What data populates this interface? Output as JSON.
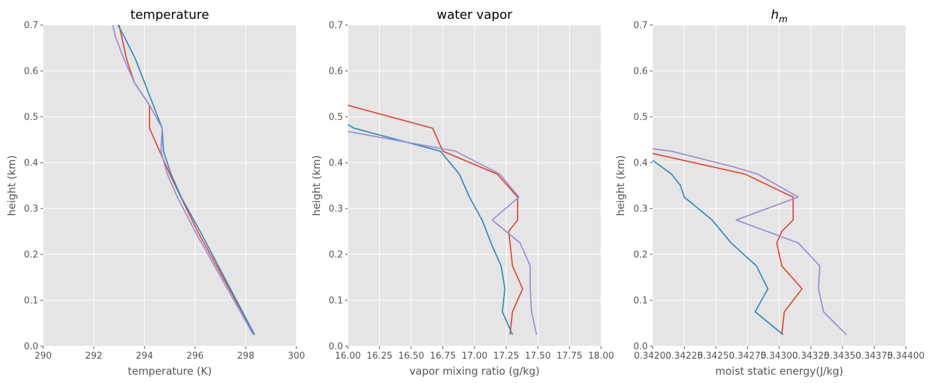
{
  "chart_data": [
    {
      "type": "line",
      "title": "temperature",
      "xlabel": "temperature (K)",
      "ylabel": "height (km)",
      "xlim": [
        290,
        300
      ],
      "ylim": [
        0.0,
        0.7
      ],
      "xticks": [
        290,
        292,
        294,
        296,
        298,
        300
      ],
      "xtick_labels": [
        "290",
        "292",
        "294",
        "296",
        "298",
        "300"
      ],
      "yticks": [
        0.0,
        0.1,
        0.2,
        0.3,
        0.4,
        0.5,
        0.6,
        0.7
      ],
      "ytick_labels": [
        "0.0",
        "0.1",
        "0.2",
        "0.3",
        "0.4",
        "0.5",
        "0.6",
        "0.7"
      ],
      "grid": true,
      "series": [
        {
          "color": "#e24a33",
          "x": [
            298.35,
            296.1,
            295.0,
            294.6,
            294.2,
            294.2,
            293.6,
            293.3,
            293.0
          ],
          "y": [
            0.025,
            0.25,
            0.375,
            0.425,
            0.475,
            0.525,
            0.575,
            0.625,
            0.7
          ]
        },
        {
          "color": "#348abd",
          "x": [
            298.35,
            296.2,
            295.45,
            295.05,
            294.75,
            294.7,
            294.0,
            293.65,
            293.2,
            292.95
          ],
          "y": [
            0.025,
            0.25,
            0.325,
            0.375,
            0.425,
            0.475,
            0.575,
            0.625,
            0.675,
            0.7
          ]
        },
        {
          "color": "#988ed5",
          "x": [
            298.3,
            296.0,
            295.3,
            294.9,
            294.65,
            294.7,
            294.2,
            293.6,
            293.2,
            292.85,
            292.75
          ],
          "y": [
            0.025,
            0.25,
            0.325,
            0.375,
            0.425,
            0.475,
            0.525,
            0.575,
            0.625,
            0.675,
            0.7
          ]
        }
      ]
    },
    {
      "type": "line",
      "title": "water vapor",
      "xlabel": "vapor mixing ratio (g/kg)",
      "ylabel": "height (km)",
      "xlim": [
        16.0,
        18.0
      ],
      "ylim": [
        0.0,
        0.7
      ],
      "xticks": [
        16.0,
        16.25,
        16.5,
        16.75,
        17.0,
        17.25,
        17.5,
        17.75,
        18.0
      ],
      "xtick_labels": [
        "16.00",
        "16.25",
        "16.50",
        "16.75",
        "17.00",
        "17.25",
        "17.50",
        "17.75",
        "18.00"
      ],
      "yticks": [
        0.0,
        0.1,
        0.2,
        0.3,
        0.4,
        0.5,
        0.6,
        0.7
      ],
      "ytick_labels": [
        "0.0",
        "0.1",
        "0.2",
        "0.3",
        "0.4",
        "0.5",
        "0.6",
        "0.7"
      ],
      "grid": true,
      "series": [
        {
          "color": "#e24a33",
          "x": [
            17.28,
            17.3,
            17.38,
            17.3,
            17.28,
            17.27,
            17.34,
            17.34,
            17.18,
            16.75,
            16.67,
            16.0
          ],
          "y": [
            0.025,
            0.075,
            0.125,
            0.175,
            0.225,
            0.25,
            0.275,
            0.325,
            0.375,
            0.425,
            0.475,
            0.525
          ]
        },
        {
          "color": "#348abd",
          "x": [
            17.3,
            17.22,
            17.24,
            17.21,
            17.13,
            17.06,
            16.96,
            16.88,
            16.73,
            16.05,
            16.0
          ],
          "y": [
            0.025,
            0.075,
            0.125,
            0.175,
            0.225,
            0.275,
            0.325,
            0.375,
            0.425,
            0.475,
            0.483
          ]
        },
        {
          "color": "#988ed5",
          "x": [
            17.49,
            17.45,
            17.44,
            17.44,
            17.36,
            17.14,
            17.35,
            17.2,
            16.85,
            16.0
          ],
          "y": [
            0.025,
            0.075,
            0.125,
            0.175,
            0.225,
            0.275,
            0.325,
            0.375,
            0.425,
            0.468
          ]
        }
      ]
    },
    {
      "type": "line",
      "title": "h_m",
      "title_main": "h",
      "title_sub": "m",
      "xlabel": "moist static energy(J/kg)",
      "ylabel": "height (km)",
      "xlim": [
        0.342,
        0.344
      ],
      "ylim": [
        0.0,
        0.7
      ],
      "xticks": [
        0.342,
        0.34225,
        0.3425,
        0.34275,
        0.343,
        0.34325,
        0.3435,
        0.34375,
        0.344
      ],
      "xtick_labels": [
        "0.34200",
        "0.34225",
        "0.34250",
        "0.34275",
        "0.34300",
        "0.34325",
        "0.34350",
        "0.34375",
        "0.34400"
      ],
      "yticks": [
        0.0,
        0.1,
        0.2,
        0.3,
        0.4,
        0.5,
        0.6,
        0.7
      ],
      "ytick_labels": [
        "0.0",
        "0.1",
        "0.2",
        "0.3",
        "0.4",
        "0.5",
        "0.6",
        "0.7"
      ],
      "grid": true,
      "series": [
        {
          "color": "#e24a33",
          "x": [
            0.34302,
            0.34304,
            0.34318,
            0.34302,
            0.34298,
            0.34302,
            0.34311,
            0.34311,
            0.34307,
            0.34273,
            0.342
          ],
          "y": [
            0.025,
            0.075,
            0.125,
            0.175,
            0.225,
            0.25,
            0.275,
            0.325,
            0.33,
            0.375,
            0.42
          ]
        },
        {
          "color": "#348abd",
          "x": [
            0.34303,
            0.34281,
            0.34291,
            0.34282,
            0.34262,
            0.34247,
            0.34225,
            0.34222,
            0.34215,
            0.342
          ],
          "y": [
            0.025,
            0.075,
            0.125,
            0.175,
            0.225,
            0.275,
            0.325,
            0.35,
            0.375,
            0.405
          ]
        },
        {
          "color": "#988ed5",
          "x": [
            0.34353,
            0.34335,
            0.34331,
            0.34332,
            0.34315,
            0.34266,
            0.34315,
            0.34283,
            0.34265,
            0.34215,
            0.342
          ],
          "y": [
            0.025,
            0.075,
            0.125,
            0.175,
            0.225,
            0.275,
            0.325,
            0.375,
            0.39,
            0.425,
            0.43
          ]
        }
      ]
    }
  ]
}
